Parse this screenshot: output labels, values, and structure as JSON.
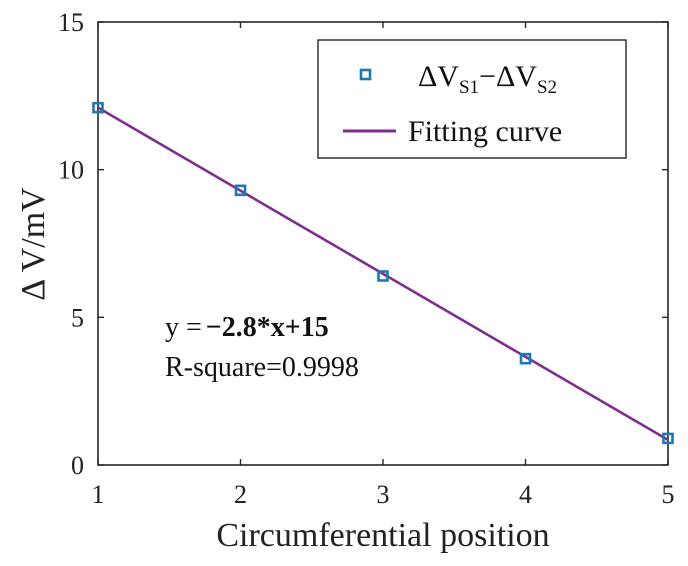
{
  "chart_data": {
    "type": "scatter",
    "x": [
      1,
      2,
      3,
      4,
      5
    ],
    "series": [
      {
        "values": [
          12.1,
          9.3,
          6.4,
          3.6,
          0.9
        ],
        "marker": "square",
        "color": "#1f77b4"
      }
    ],
    "fit": {
      "slope": -2.8,
      "intercept": 15,
      "x_range": [
        1,
        5
      ],
      "y_range": [
        12.1,
        0.85
      ],
      "color": "#7e2f8e"
    },
    "xlabel": "Circumferential position",
    "ylabel": "Δ V/mV",
    "xlim": [
      1,
      5
    ],
    "ylim": [
      0,
      15
    ],
    "xticks": [
      "1",
      "2",
      "3",
      "4",
      "5"
    ],
    "yticks": [
      "0",
      "5",
      "10",
      "15"
    ],
    "grid": false,
    "legend": {
      "placement": "top-right",
      "entries": [
        {
          "parts": [
            "ΔV",
            "S1",
            "−ΔV",
            "S2"
          ],
          "type": "marker"
        },
        {
          "label": "Fitting curve",
          "type": "line"
        }
      ]
    },
    "annotations": {
      "equation_prefix": "y =",
      "equation_bold": "−2.8*x+15",
      "rsquare": "R-square=0.9998"
    }
  }
}
